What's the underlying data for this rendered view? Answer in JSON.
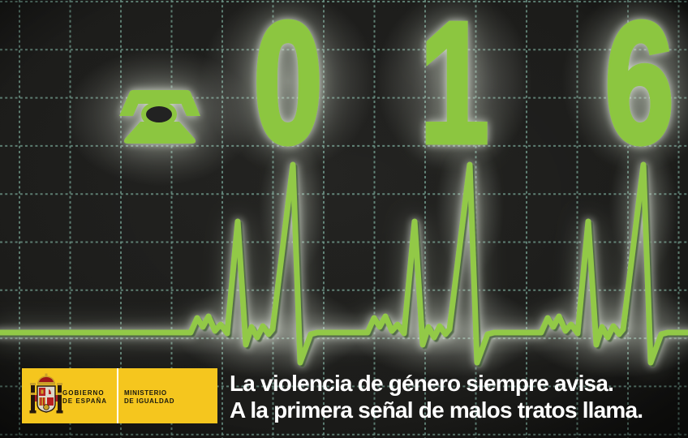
{
  "hotline": {
    "number": "016",
    "digits": [
      "0",
      "1",
      "6"
    ]
  },
  "message": {
    "line1": "La violencia de género siempre avisa.",
    "line2": "A la primera señal de malos tratos llama."
  },
  "logo": {
    "government_line1": "GOBIERNO",
    "government_line2": "DE ESPAÑA",
    "ministry_line1": "MINISTERIO",
    "ministry_line2": "DE IGUALDAD"
  },
  "icons": {
    "phone": "rotary-phone-icon",
    "coat_of_arms": "spain-coat-of-arms-icon"
  },
  "colors": {
    "ecg_green": "#8CC63F",
    "grid_teal": "#6F988A",
    "background": "#1E1E1C",
    "logo_yellow": "#F5C61E",
    "message_white": "#FFFFFF",
    "logo_text": "#181810"
  }
}
